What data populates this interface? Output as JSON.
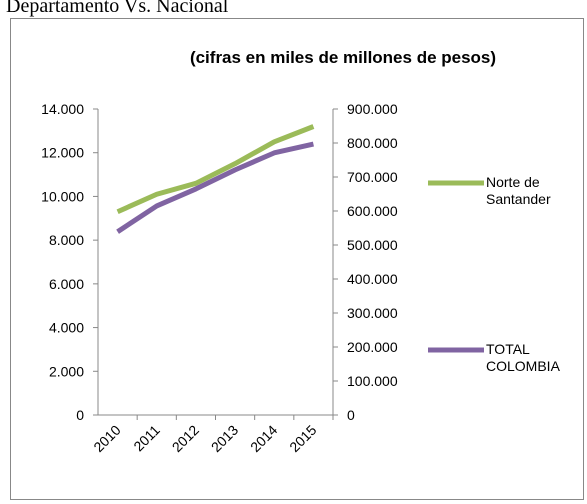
{
  "heading": "Departamento Vs. Nacional",
  "chart_data": {
    "type": "line",
    "title": "(cifras en miles de millones de pesos)",
    "categories": [
      "2010",
      "2011",
      "2012",
      "2013",
      "2014",
      "2015"
    ],
    "series": [
      {
        "name": "Norte de Santander",
        "color": "#9bbb59",
        "values": [
          9300,
          10100,
          10600,
          11500,
          12500,
          13200
        ]
      },
      {
        "name": "TOTAL COLOMBIA",
        "color": "#8064a2",
        "axis": "y2",
        "values": [
          539000,
          615000,
          665000,
          721000,
          771000,
          797000
        ]
      }
    ],
    "ylim": [
      0,
      14000
    ],
    "yticks": [
      {
        "value": 0,
        "label": "0"
      },
      {
        "value": 2000,
        "label": "2.000"
      },
      {
        "value": 4000,
        "label": "4.000"
      },
      {
        "value": 6000,
        "label": "6.000"
      },
      {
        "value": 8000,
        "label": "8.000"
      },
      {
        "value": 10000,
        "label": "10.000"
      },
      {
        "value": 12000,
        "label": "12.000"
      },
      {
        "value": 14000,
        "label": "14.000"
      }
    ],
    "y2lim": [
      0,
      900000
    ],
    "y2ticks": [
      {
        "value": 0,
        "label": "0"
      },
      {
        "value": 100000,
        "label": "100.000"
      },
      {
        "value": 200000,
        "label": "200.000"
      },
      {
        "value": 300000,
        "label": "300.000"
      },
      {
        "value": 400000,
        "label": "400.000"
      },
      {
        "value": 500000,
        "label": "500.000"
      },
      {
        "value": 600000,
        "label": "600.000"
      },
      {
        "value": 700000,
        "label": "700.000"
      },
      {
        "value": 800000,
        "label": "800.000"
      },
      {
        "value": 900000,
        "label": "900.000"
      }
    ],
    "legend": "right"
  }
}
